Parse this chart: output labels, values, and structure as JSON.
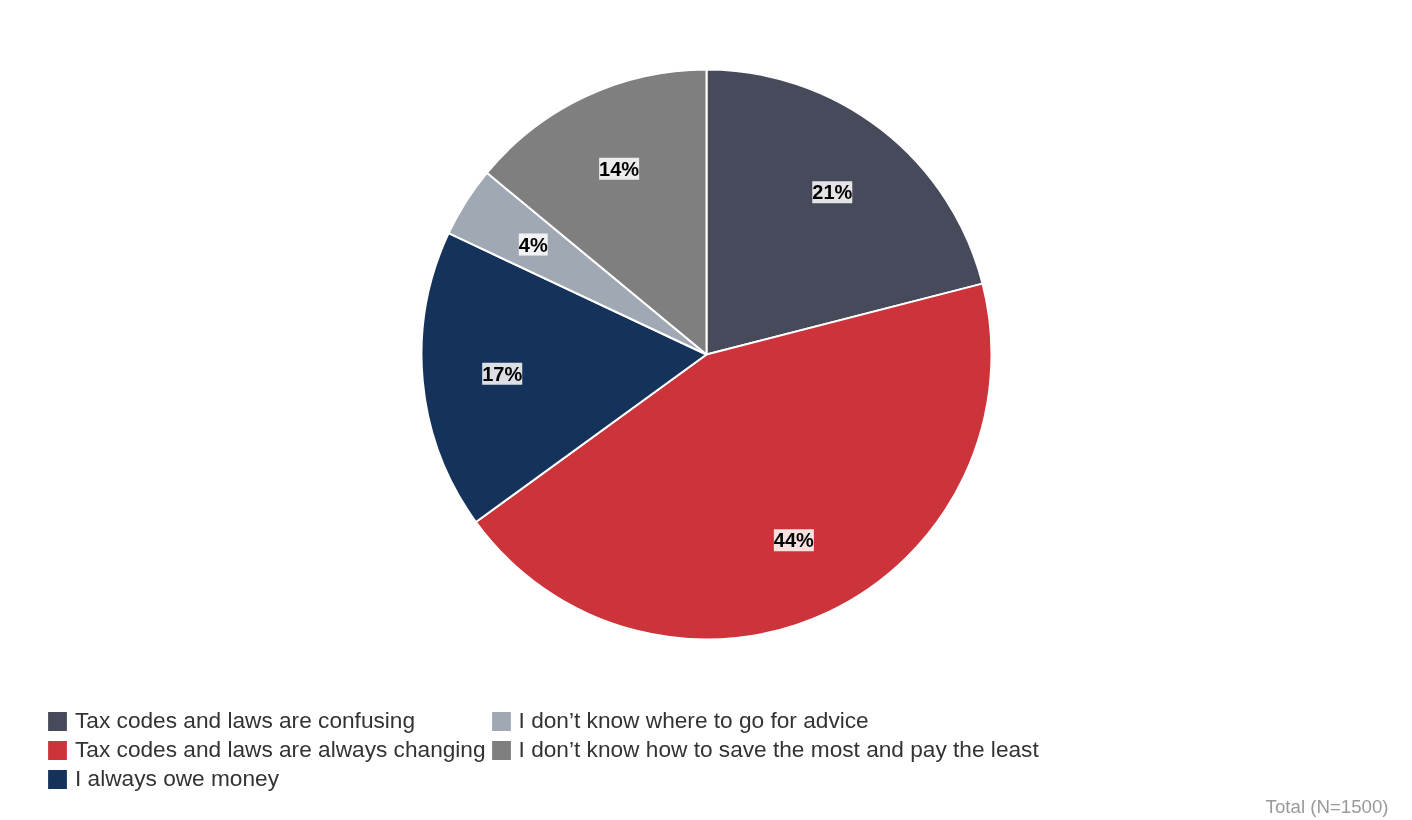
{
  "chart_data": {
    "type": "pie",
    "categories": [
      "Tax codes and laws are confusing",
      "Tax codes and laws are always changing",
      "I always owe money",
      "I don’t know where to go for advice",
      "I don’t know how to save the most and pay the least"
    ],
    "values": [
      21,
      44,
      17,
      4,
      14
    ],
    "colors": [
      "#464a5a",
      "#cc333b",
      "#15325a",
      "#a0a8b4",
      "#7f7f7f"
    ],
    "value_labels": [
      "21%",
      "44%",
      "17%",
      "4%",
      "14%"
    ],
    "legend": "bottom",
    "annotations": [
      "Total (N=1500)"
    ]
  }
}
